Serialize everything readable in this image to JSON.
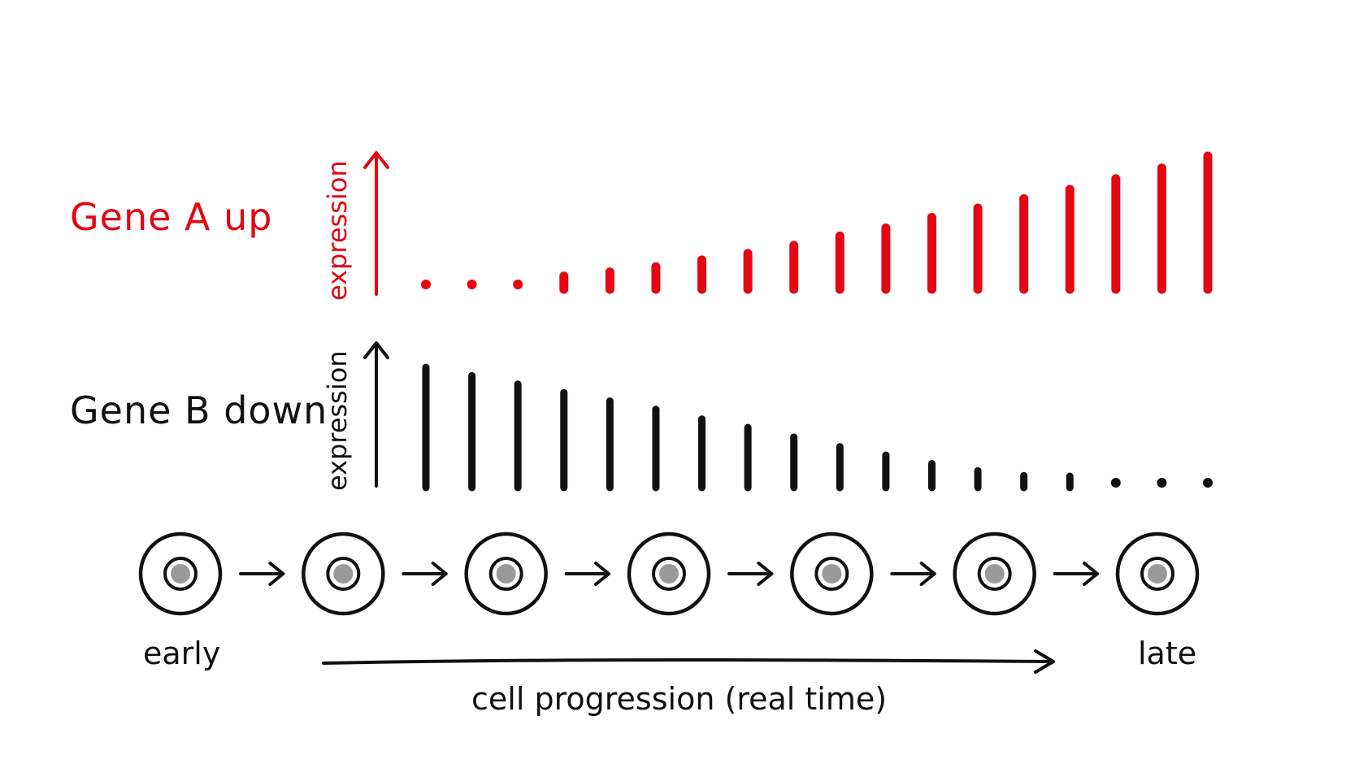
{
  "gene_a": {
    "label": "Gene A  up",
    "axis_label": "expression",
    "color": "#e30613",
    "trend": "increasing",
    "levels": [
      0,
      0,
      0,
      0.1,
      0.13,
      0.17,
      0.22,
      0.27,
      0.33,
      0.4,
      0.46,
      0.54,
      0.61,
      0.68,
      0.75,
      0.83,
      0.91,
      1.0
    ]
  },
  "gene_b": {
    "label": "Gene B down",
    "axis_label": "expression",
    "color": "#111111",
    "trend": "decreasing",
    "levels": [
      1.0,
      0.93,
      0.86,
      0.79,
      0.72,
      0.65,
      0.57,
      0.5,
      0.42,
      0.34,
      0.27,
      0.2,
      0.14,
      0.1,
      0.07,
      0,
      0,
      0
    ]
  },
  "cells": {
    "count": 7,
    "labels": [
      "early",
      "late"
    ]
  },
  "progression_label": "cell progression (real time)"
}
